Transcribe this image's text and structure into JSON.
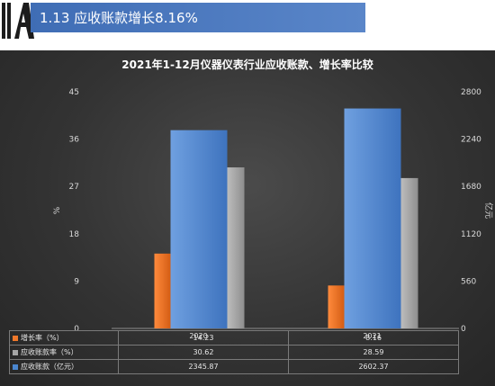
{
  "header": {
    "title": "1.13  应收账款增长8.16%"
  },
  "chart_data": {
    "type": "bar",
    "title": "2021年1-12月仪器仪表行业应收账款、增长率比较",
    "categories": [
      "2020",
      "2021"
    ],
    "ylabel_left": "%",
    "ylabel_right": "亿元",
    "ylim_left": [
      0,
      45
    ],
    "yticks_left": [
      "0",
      "9",
      "18",
      "27",
      "36",
      "45"
    ],
    "ylim_right": [
      0,
      2800
    ],
    "yticks_right": [
      "0",
      "560",
      "1120",
      "1680",
      "2240",
      "2800"
    ],
    "grid": false,
    "series": [
      {
        "name": "增长率（%）",
        "axis": "left",
        "color": "#f0782a",
        "values": [
          14.23,
          8.16
        ],
        "labels": [
          "14.23",
          "8.16"
        ]
      },
      {
        "name": "应收账款率（%）",
        "axis": "left",
        "color": "#a6a6a6",
        "values": [
          30.62,
          28.59
        ],
        "labels": [
          "30.62",
          "28.59"
        ]
      },
      {
        "name": "应收账款（亿元）",
        "axis": "right",
        "color": "#4a86cf",
        "values": [
          2345.87,
          2602.37
        ],
        "labels": [
          "2345.87",
          "2602.37"
        ]
      }
    ]
  }
}
